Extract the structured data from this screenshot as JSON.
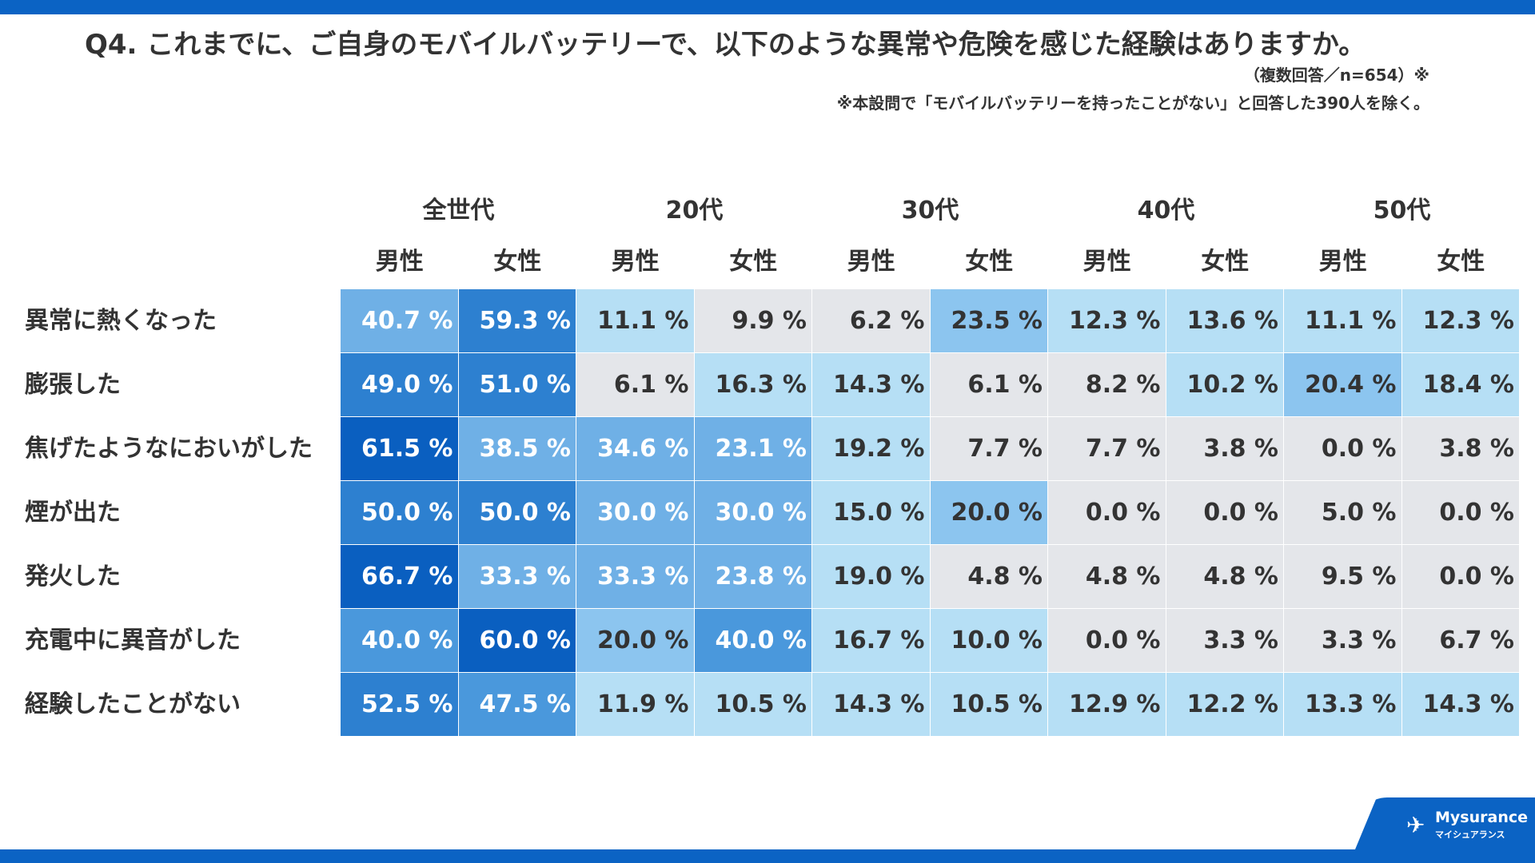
{
  "title": "Q4. これまでに、ご自身のモバイルバッテリーで、以下のような異常や危険を感じた経験はありますか。",
  "note1": "（複数回答／n=654）※",
  "note2": "※本設問で「モバイルバッテリーを持ったことがない」と回答した390人を除く。",
  "logo": {
    "name": "Mysurance",
    "kana": "マイシュアランス"
  },
  "chart_data": {
    "type": "table",
    "age_groups": [
      "全世代",
      "20代",
      "30代",
      "40代",
      "50代"
    ],
    "genders": [
      "男性",
      "女性",
      "男性",
      "女性",
      "男性",
      "女性",
      "男性",
      "女性",
      "男性",
      "女性"
    ],
    "unit": "%",
    "rows": [
      {
        "label": "異常に熱くなった",
        "values": [
          "40.7 %",
          "59.3 %",
          "11.1 %",
          "9.9 %",
          "6.2 %",
          "23.5 %",
          "12.3 %",
          "13.6 %",
          "11.1 %",
          "12.3 %"
        ],
        "levels": [
          3,
          2,
          5,
          6,
          6,
          4,
          5,
          5,
          5,
          5
        ]
      },
      {
        "label": "膨張した",
        "values": [
          "49.0 %",
          "51.0 %",
          "6.1 %",
          "16.3 %",
          "14.3 %",
          "6.1 %",
          "8.2 %",
          "10.2 %",
          "20.4 %",
          "18.4 %"
        ],
        "levels": [
          2,
          2,
          6,
          5,
          5,
          6,
          6,
          5,
          4,
          5
        ]
      },
      {
        "label": "焦げたようなにおいがした",
        "values": [
          "61.5 %",
          "38.5 %",
          "34.6 %",
          "23.1 %",
          "19.2 %",
          "7.7 %",
          "7.7 %",
          "3.8 %",
          "0.0 %",
          "3.8 %"
        ],
        "levels": [
          1,
          3,
          3,
          3,
          5,
          6,
          6,
          6,
          6,
          6
        ]
      },
      {
        "label": "煙が出た",
        "values": [
          "50.0 %",
          "50.0 %",
          "30.0 %",
          "30.0 %",
          "15.0 %",
          "20.0 %",
          "0.0 %",
          "0.0 %",
          "5.0 %",
          "0.0 %"
        ],
        "levels": [
          2,
          2,
          3,
          3,
          5,
          4,
          6,
          6,
          6,
          6
        ]
      },
      {
        "label": "発火した",
        "values": [
          "66.7 %",
          "33.3 %",
          "33.3 %",
          "23.8 %",
          "19.0 %",
          "4.8 %",
          "4.8 %",
          "4.8 %",
          "9.5 %",
          "0.0 %"
        ],
        "levels": [
          1,
          3,
          3,
          3,
          5,
          6,
          6,
          6,
          6,
          6
        ]
      },
      {
        "label": "充電中に異音がした",
        "values": [
          "40.0 %",
          "60.0 %",
          "20.0 %",
          "40.0 %",
          "16.7 %",
          "10.0 %",
          "0.0 %",
          "3.3 %",
          "3.3 %",
          "6.7 %"
        ],
        "levels": [
          2.5,
          1,
          4,
          2.5,
          5,
          5,
          6,
          6,
          6,
          6
        ]
      },
      {
        "label": "経験したことがない",
        "values": [
          "52.5 %",
          "47.5 %",
          "11.9 %",
          "10.5 %",
          "14.3 %",
          "10.5 %",
          "12.9 %",
          "12.2 %",
          "13.3 %",
          "14.3 %"
        ],
        "levels": [
          2,
          2.5,
          5,
          5,
          5,
          5,
          5,
          5,
          5,
          5
        ]
      }
    ],
    "colors": {
      "1": "#0a5fc0",
      "2": "#2d80d0",
      "2.5": "#4a98dc",
      "3": "#6fb0e6",
      "4": "#8cc5ef",
      "5": "#b6dff5",
      "6": "#e4e6ea"
    }
  }
}
